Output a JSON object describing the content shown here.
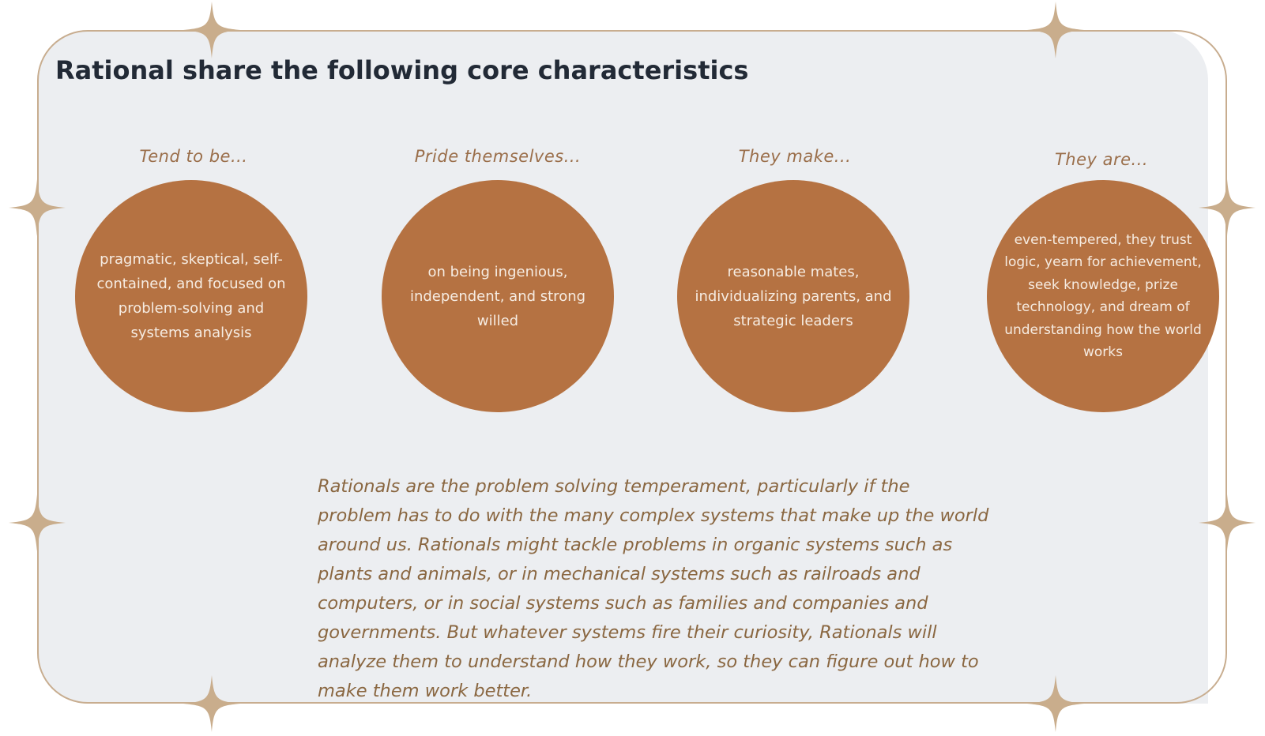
{
  "page": {
    "title": "Rational share the following core characteristics"
  },
  "columns": [
    {
      "heading": "Tend to be...",
      "body": "pragmatic, skeptical, self-contained, and focused on problem-solving and systems analysis"
    },
    {
      "heading": "Pride themselves...",
      "body": "on being ingenious, independent, and strong willed"
    },
    {
      "heading": "They make...",
      "body": "reasonable mates, individualizing parents, and strategic leaders"
    },
    {
      "heading": "They are...",
      "body": "even-tempered, they trust logic, yearn for achievement, seek knowledge, prize technology, and dream of understanding how the world works"
    }
  ],
  "description": "Rationals are the problem solving temperament, particularly if the problem has to do with the many complex systems that make up the world around us. Rationals might tackle problems in organic systems such as plants and animals, or in mechanical systems such as railroads and computers, or in social systems such as families and companies and governments. But whatever systems fire their curiosity, Rationals will analyze them to understand how they work, so they can figure out how to make them work better.",
  "colors": {
    "circle": "#b57242",
    "heading": "#9a6e4a",
    "paragraph": "#8a6741",
    "panel": "#eceef1",
    "frame": "#c8ad8f",
    "sparkle": "#c9ad8c"
  },
  "icons": [
    "four-point-star-icon"
  ]
}
